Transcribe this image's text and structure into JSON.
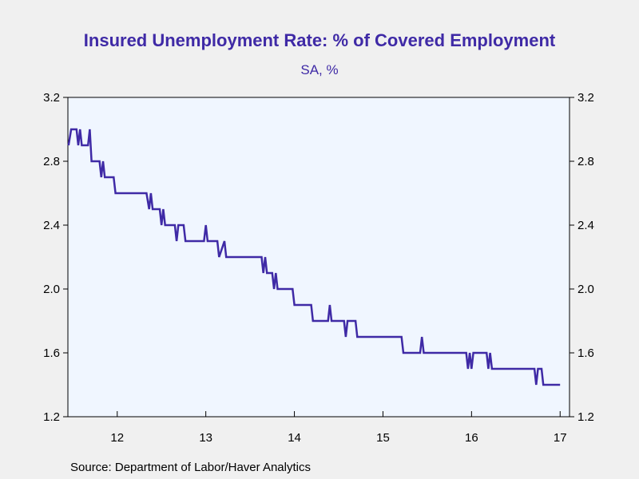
{
  "chart_data": {
    "type": "line",
    "title": "Insured Unemployment Rate: % of Covered Employment",
    "subtitle": "SA, %",
    "source": "Source:  Department of Labor/Haver Analytics",
    "ylim": [
      1.2,
      3.2
    ],
    "yticks": [
      "1.2",
      "1.6",
      "2.0",
      "2.4",
      "2.8",
      "3.2"
    ],
    "xlim": [
      2011.443,
      2017.106
    ],
    "xticks": [
      {
        "value": 2012,
        "label": "12"
      },
      {
        "value": 2013,
        "label": "13"
      },
      {
        "value": 2014,
        "label": "14"
      },
      {
        "value": 2015,
        "label": "15"
      },
      {
        "value": 2016,
        "label": "16"
      },
      {
        "value": 2017,
        "label": "17"
      }
    ],
    "grid": false,
    "colors": {
      "line": "#3f2aa6",
      "plot_bg": "#f0f6ff",
      "text": "#3f2aa6"
    },
    "series": [
      {
        "values": [
          [
            2011.45,
            2.9
          ],
          [
            2011.48,
            3.0
          ],
          [
            2011.54,
            3.0
          ],
          [
            2011.56,
            2.9
          ],
          [
            2011.58,
            3.0
          ],
          [
            2011.6,
            2.9
          ],
          [
            2011.67,
            2.9
          ],
          [
            2011.69,
            3.0
          ],
          [
            2011.71,
            2.8
          ],
          [
            2011.8,
            2.8
          ],
          [
            2011.82,
            2.7
          ],
          [
            2011.84,
            2.8
          ],
          [
            2011.86,
            2.7
          ],
          [
            2011.96,
            2.7
          ],
          [
            2011.98,
            2.6
          ],
          [
            2012.33,
            2.6
          ],
          [
            2012.36,
            2.5
          ],
          [
            2012.38,
            2.6
          ],
          [
            2012.4,
            2.5
          ],
          [
            2012.48,
            2.5
          ],
          [
            2012.5,
            2.4
          ],
          [
            2012.52,
            2.5
          ],
          [
            2012.54,
            2.4
          ],
          [
            2012.65,
            2.4
          ],
          [
            2012.67,
            2.3
          ],
          [
            2012.69,
            2.4
          ],
          [
            2012.75,
            2.4
          ],
          [
            2012.77,
            2.3
          ],
          [
            2012.98,
            2.3
          ],
          [
            2013.0,
            2.4
          ],
          [
            2013.02,
            2.3
          ],
          [
            2013.13,
            2.3
          ],
          [
            2013.15,
            2.2
          ],
          [
            2013.21,
            2.3
          ],
          [
            2013.23,
            2.2
          ],
          [
            2013.63,
            2.2
          ],
          [
            2013.65,
            2.1
          ],
          [
            2013.67,
            2.2
          ],
          [
            2013.69,
            2.1
          ],
          [
            2013.75,
            2.1
          ],
          [
            2013.77,
            2.0
          ],
          [
            2013.79,
            2.1
          ],
          [
            2013.81,
            2.0
          ],
          [
            2013.98,
            2.0
          ],
          [
            2014.0,
            1.9
          ],
          [
            2014.19,
            1.9
          ],
          [
            2014.21,
            1.8
          ],
          [
            2014.38,
            1.8
          ],
          [
            2014.4,
            1.9
          ],
          [
            2014.42,
            1.8
          ],
          [
            2014.56,
            1.8
          ],
          [
            2014.58,
            1.7
          ],
          [
            2014.6,
            1.8
          ],
          [
            2014.69,
            1.8
          ],
          [
            2014.71,
            1.7
          ],
          [
            2015.21,
            1.7
          ],
          [
            2015.23,
            1.6
          ],
          [
            2015.42,
            1.6
          ],
          [
            2015.44,
            1.7
          ],
          [
            2015.46,
            1.6
          ],
          [
            2015.94,
            1.6
          ],
          [
            2015.96,
            1.5
          ],
          [
            2015.98,
            1.6
          ],
          [
            2016.0,
            1.5
          ],
          [
            2016.02,
            1.6
          ],
          [
            2016.17,
            1.6
          ],
          [
            2016.19,
            1.5
          ],
          [
            2016.21,
            1.6
          ],
          [
            2016.23,
            1.5
          ],
          [
            2016.71,
            1.5
          ],
          [
            2016.73,
            1.4
          ],
          [
            2016.75,
            1.5
          ],
          [
            2016.79,
            1.5
          ],
          [
            2016.81,
            1.4
          ],
          [
            2017.0,
            1.4
          ]
        ]
      }
    ]
  }
}
